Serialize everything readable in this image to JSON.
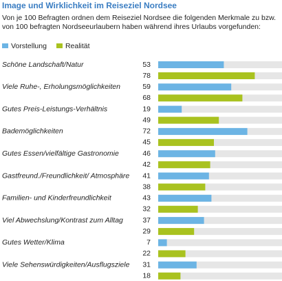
{
  "chart_data": {
    "type": "bar",
    "orientation": "horizontal",
    "title": "Image und Wirklichkeit im Reiseziel Nordsee",
    "subtitle": "Von je 100 Befragten ordnen dem Reiseziel Nordsee die folgenden Merkmale zu bzw. von 100 befragten Nordseeurlaubern haben während ihres Urlaubs vorgefunden:",
    "categories": [
      "Schöne Landschaft/Natur",
      "Viele Ruhe-, Erholungsmöglichkeiten",
      "Gutes Preis-Leistungs-Verhältnis",
      "Bademöglichkeiten",
      "Gutes Essen/vielfältige Gastronomie",
      "Gastfreund./Freundlichkeit/ Atmosphäre",
      "Familien- und Kinderfreundlichkeit",
      "Viel Abwechslung/Kontrast zum Alltag",
      "Gutes Wetter/Klima",
      "Viele Sehenswürdigkeiten/Ausflugsziele"
    ],
    "series": [
      {
        "name": "Vorstellung",
        "color": "#6cb4e4",
        "values": [
          53,
          59,
          19,
          72,
          46,
          41,
          43,
          37,
          7,
          31
        ]
      },
      {
        "name": "Realität",
        "color": "#a9c21f",
        "values": [
          78,
          68,
          49,
          45,
          42,
          38,
          32,
          29,
          22,
          18
        ]
      }
    ],
    "xlim": [
      0,
      100
    ]
  }
}
